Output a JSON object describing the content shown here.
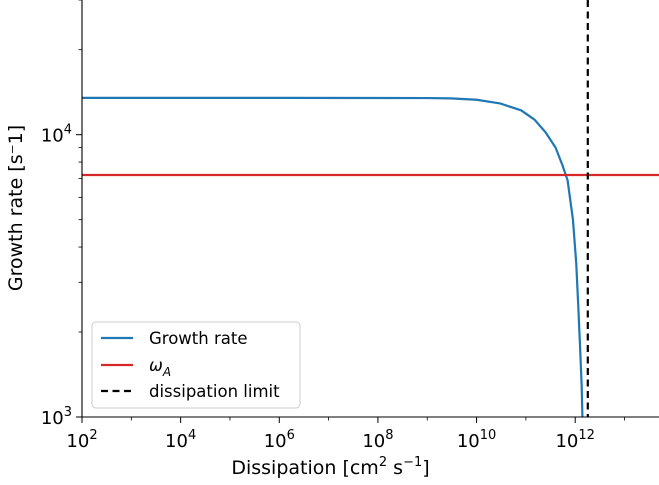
{
  "chart_data": {
    "type": "line",
    "xlabel": {
      "main": "Dissipation [cm",
      "sup1": "2",
      "mid": " s",
      "sup2": "−1",
      "end": "]"
    },
    "ylabel": "Growth rate [s⁻1]",
    "xscale": "log",
    "yscale": "log",
    "xlim": [
      100,
      50000000000000
    ],
    "ylim": [
      1000,
      30000
    ],
    "grid": false,
    "legend_position": "lower-left",
    "x_ticks": [
      {
        "value": 100,
        "base": "10",
        "exp": "2"
      },
      {
        "value": 10000,
        "base": "10",
        "exp": "4"
      },
      {
        "value": 1000000,
        "base": "10",
        "exp": "6"
      },
      {
        "value": 100000000,
        "base": "10",
        "exp": "8"
      },
      {
        "value": 10000000000,
        "base": "10",
        "exp": "10"
      },
      {
        "value": 1000000000000,
        "base": "10",
        "exp": "12"
      }
    ],
    "y_ticks": [
      {
        "value": 1000,
        "base": "10",
        "exp": "3"
      },
      {
        "value": 10000,
        "base": "10",
        "exp": "4"
      }
    ],
    "series": [
      {
        "name": "Growth rate",
        "color": "#1f77b4",
        "style": "solid",
        "x": [
          100,
          1000000,
          1000000000,
          3000000000,
          10000000000,
          30000000000,
          80000000000,
          150000000000,
          250000000000,
          400000000000,
          550000000000,
          700000000000,
          900000000000,
          1050000000000,
          1150000000000,
          1250000000000,
          1350000000000,
          1400000000000
        ],
        "y": [
          13500,
          13500,
          13480,
          13450,
          13300,
          12900,
          12200,
          11300,
          10200,
          9000,
          7800,
          6900,
          5000,
          3500,
          2500,
          1800,
          1300,
          1000
        ]
      },
      {
        "name": "ω_A",
        "label_main": "ω",
        "label_sub": "A",
        "color": "#d62728",
        "style": "solid",
        "y_const": 7200
      },
      {
        "name": "dissipation limit",
        "color": "#000000",
        "style": "dashed",
        "x_const": 1800000000000
      }
    ]
  }
}
